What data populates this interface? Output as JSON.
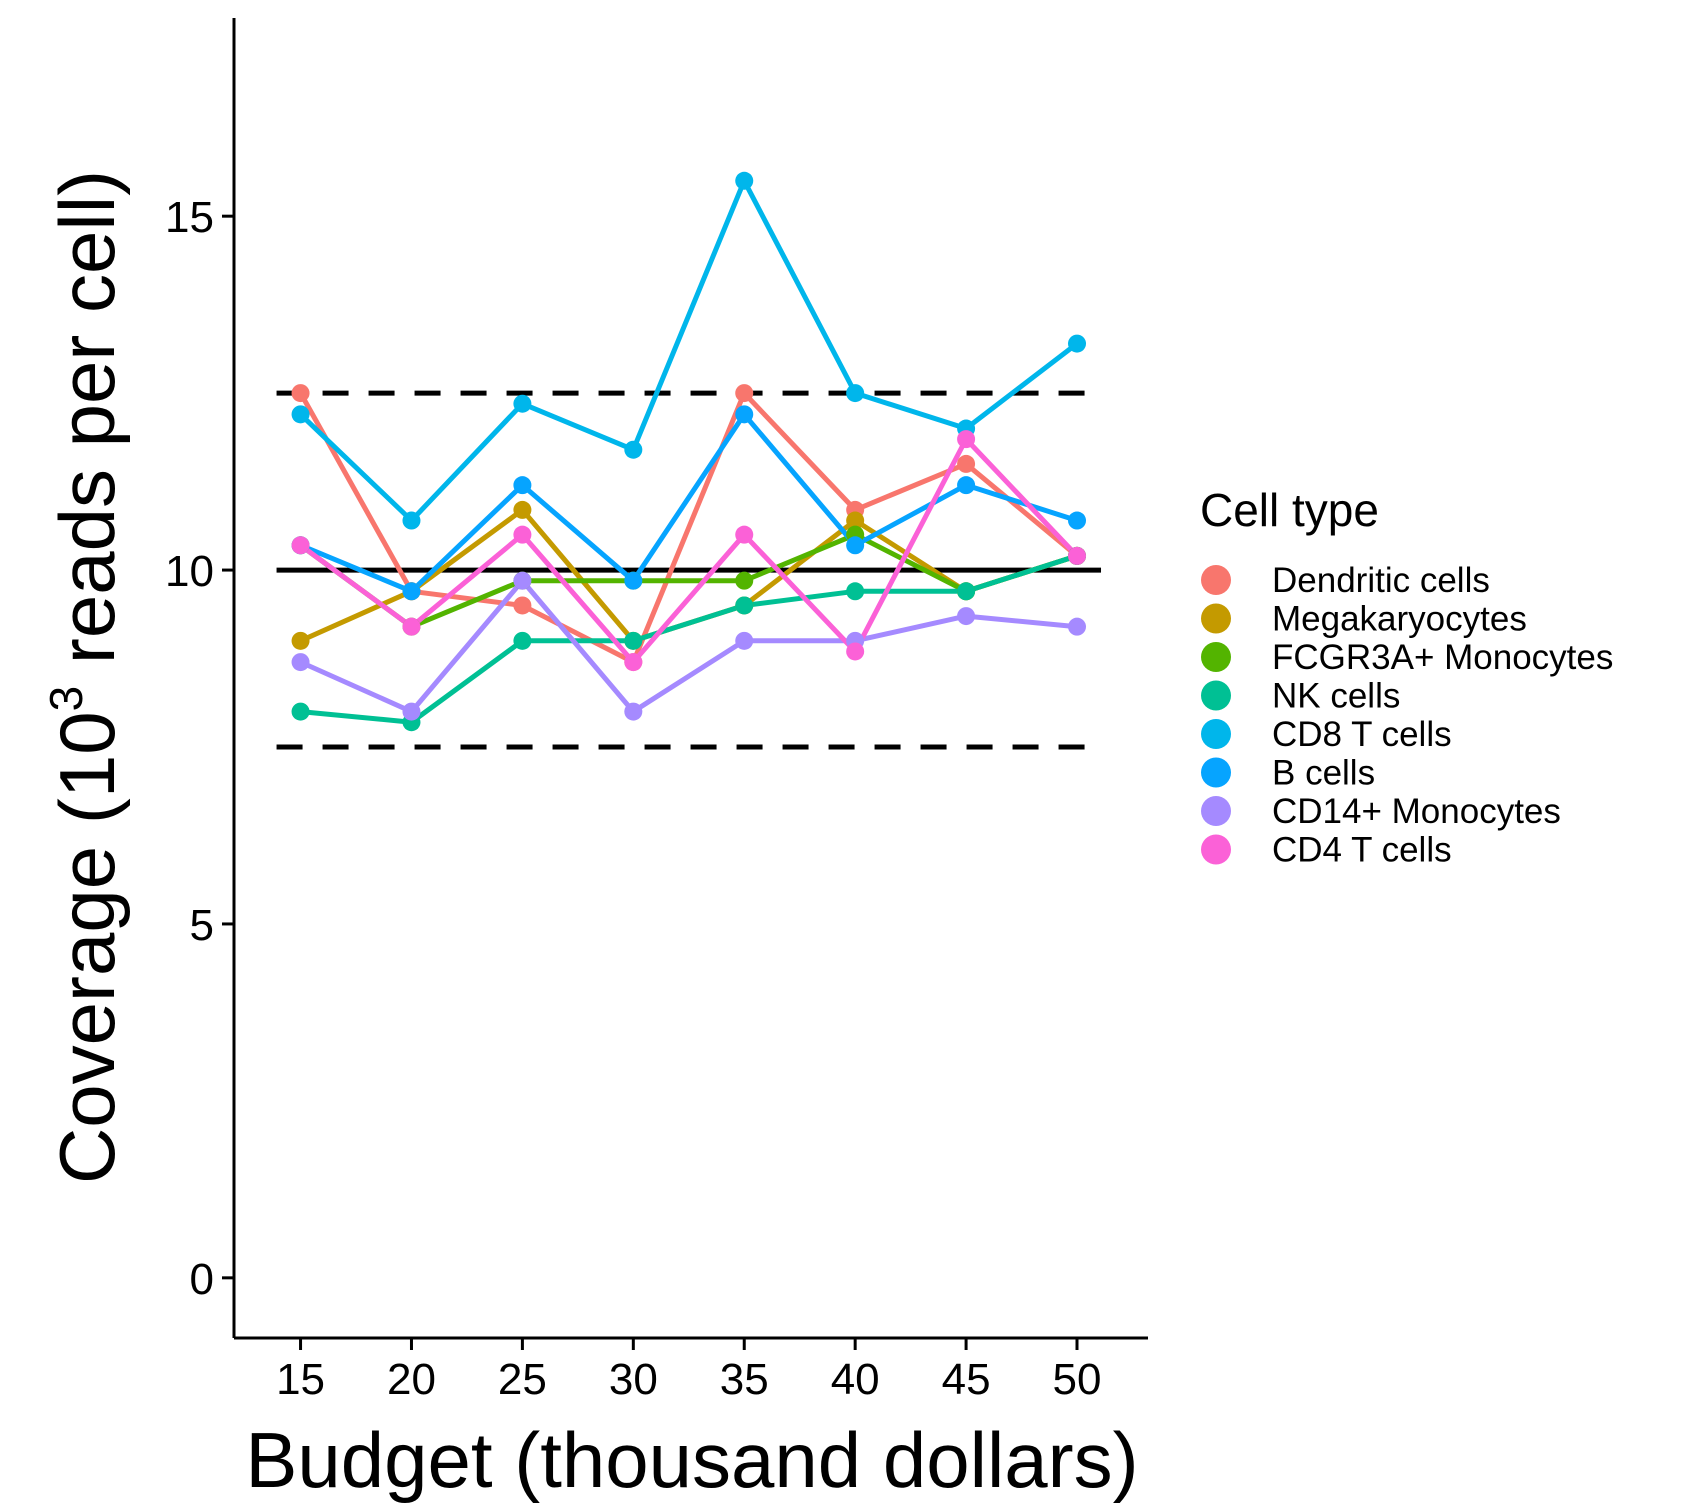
{
  "chart_data": {
    "type": "line",
    "x": [
      15,
      20,
      25,
      30,
      35,
      40,
      45,
      50
    ],
    "xticks": [
      "15",
      "20",
      "25",
      "30",
      "35",
      "40",
      "45",
      "50"
    ],
    "yticks": [
      "0",
      "5",
      "10",
      "15"
    ],
    "xlabel": "Budget (thousand dollars)",
    "ylabel_prefix": "Coverage (10",
    "ylabel_sup": "3",
    "ylabel_suffix": " reads per cell)",
    "xlim": [
      12,
      53.2
    ],
    "ylim": [
      -0.85,
      17.8
    ],
    "grid": false,
    "legend_title": "Cell type",
    "legend_position": "right",
    "reference_lines": [
      {
        "y": 10,
        "style": "solid",
        "color": "#000000"
      },
      {
        "y": 12.5,
        "style": "dashed",
        "color": "#000000"
      },
      {
        "y": 7.5,
        "style": "dashed",
        "color": "#000000"
      }
    ],
    "series": [
      {
        "name": "Dendritic cells",
        "color": "#F8766D",
        "values": [
          12.5,
          9.7,
          9.5,
          8.7,
          12.5,
          10.85,
          11.5,
          10.2
        ]
      },
      {
        "name": "Megakaryocytes",
        "color": "#C49A00",
        "values": [
          9.0,
          9.7,
          10.85,
          9.0,
          9.5,
          10.7,
          9.7,
          10.2
        ]
      },
      {
        "name": "FCGR3A+ Monocytes",
        "color": "#53B400",
        "values": [
          10.35,
          9.2,
          9.85,
          9.85,
          9.85,
          10.5,
          9.7,
          10.2
        ]
      },
      {
        "name": "NK cells",
        "color": "#00C094",
        "values": [
          8.0,
          7.85,
          9.0,
          9.0,
          9.5,
          9.7,
          9.7,
          10.2
        ]
      },
      {
        "name": "CD8 T cells",
        "color": "#00B6EB",
        "values": [
          12.2,
          10.7,
          12.35,
          11.7,
          15.5,
          12.5,
          12.0,
          13.2
        ]
      },
      {
        "name": "B cells",
        "color": "#06A4FF",
        "values": [
          10.35,
          9.7,
          11.2,
          9.85,
          12.2,
          10.35,
          11.2,
          10.7
        ]
      },
      {
        "name": "CD14+ Monocytes",
        "color": "#A58AFF",
        "values": [
          8.7,
          8.0,
          9.85,
          8.0,
          9.0,
          9.0,
          9.35,
          9.2
        ]
      },
      {
        "name": "CD4 T cells",
        "color": "#FB61D7",
        "values": [
          10.35,
          9.2,
          10.5,
          8.7,
          10.5,
          8.85,
          11.85,
          10.2
        ]
      }
    ],
    "render_colors": {
      "Dendritic cells": "#F8766D",
      "Megakaryocytes": "#C49A00",
      "FCGR3A+ Monocytes": "#53B400",
      "NK cells": "#00C094",
      "CD8 T cells": "#00B6EB",
      "B cells": "#06A4FF",
      "CD14+ Monocytes": "#A58AFF",
      "CD4 T cells": "#FB61D7"
    }
  }
}
